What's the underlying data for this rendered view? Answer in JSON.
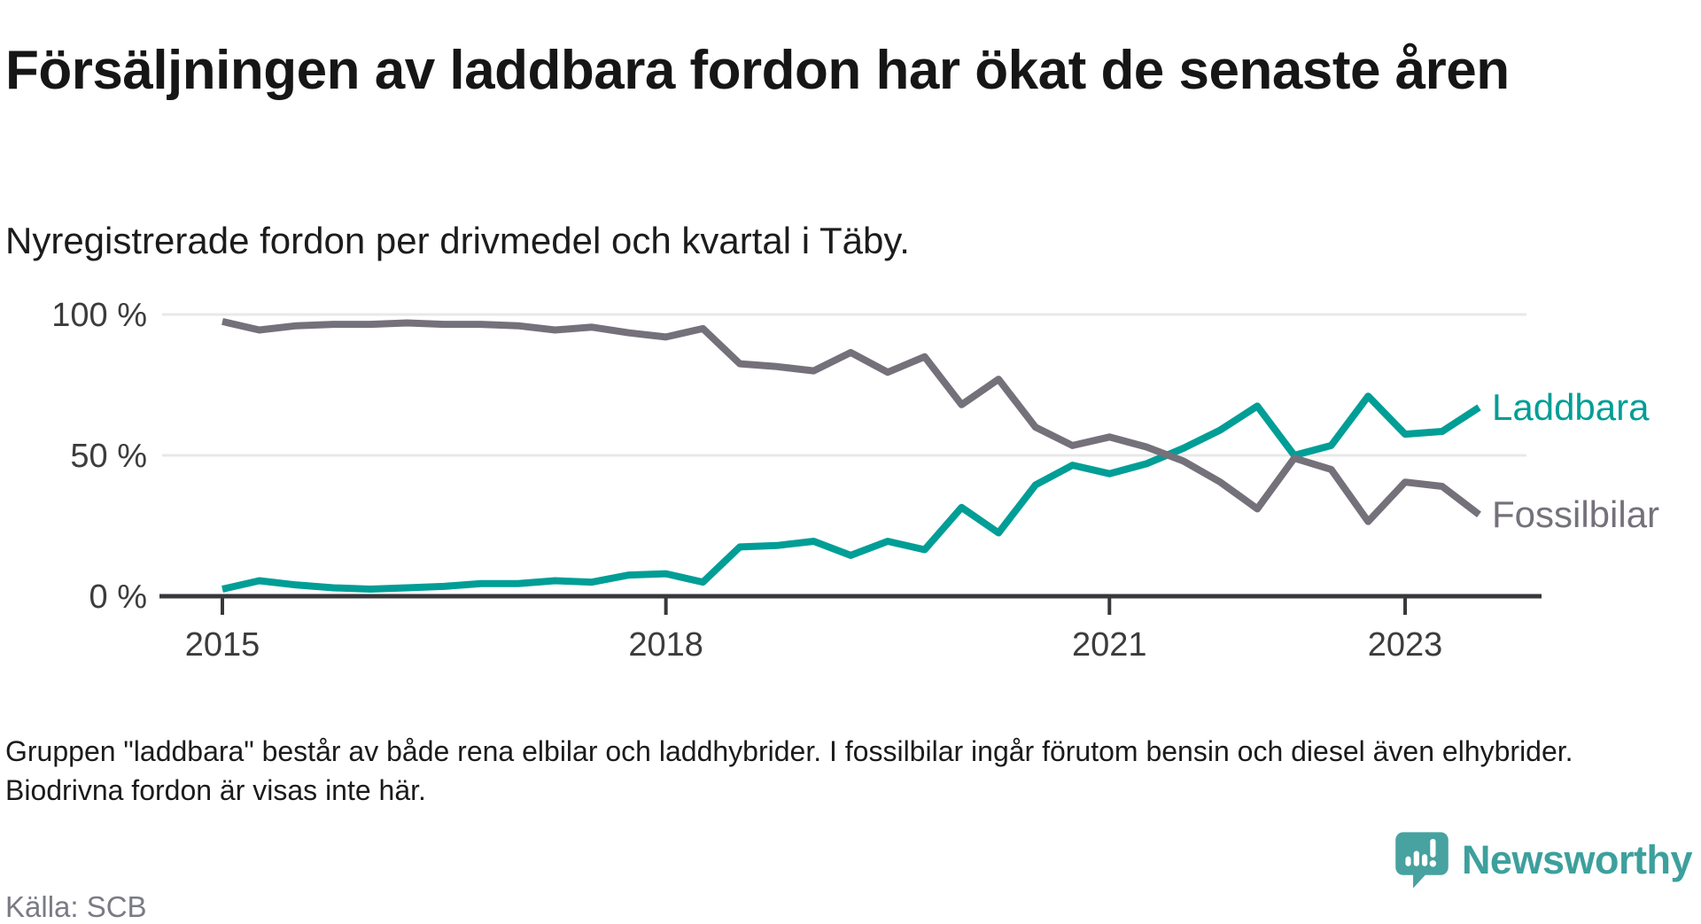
{
  "header": {
    "title": "Försäljningen av laddbara fordon har ökat de senaste åren",
    "subtitle": "Nyregistrerade fordon per drivmedel och kvartal i Täby."
  },
  "footer": {
    "note": "Gruppen \"laddbara\" består av både rena elbilar och laddhybrider. I fossilbilar ingår förutom bensin och diesel även elhybrider. Biodrivna fordon är visas inte här.",
    "source": "Källa: SCB",
    "brand": "Newsworthy"
  },
  "colors": {
    "grid": "#e8e8e8",
    "axis": "#38383c",
    "tick_text": "#3c3c3c",
    "laddbara": "#009e96",
    "fossilbilar": "#74717a",
    "logo_teal": "#47a2a0"
  },
  "chart_data": {
    "type": "line",
    "title": "Försäljningen av laddbara fordon har ökat de senaste åren",
    "subtitle": "Nyregistrerade fordon per drivmedel och kvartal i Täby.",
    "xlabel": "",
    "ylabel": "",
    "x_unit": "quarter",
    "ylim": [
      0,
      100
    ],
    "grid": "horizontal",
    "legend_position": "right-end-labels",
    "y_ticks": [
      100,
      50,
      0
    ],
    "y_tick_labels": [
      "100 %",
      "50 %",
      "0 %"
    ],
    "x_tick_positions": [
      0,
      12,
      24,
      32
    ],
    "x_tick_labels": [
      "2015",
      "2018",
      "2021",
      "2023"
    ],
    "quarters": [
      "2015 Q1",
      "2015 Q2",
      "2015 Q3",
      "2015 Q4",
      "2016 Q1",
      "2016 Q2",
      "2016 Q3",
      "2016 Q4",
      "2017 Q1",
      "2017 Q2",
      "2017 Q3",
      "2017 Q4",
      "2018 Q1",
      "2018 Q2",
      "2018 Q3",
      "2018 Q4",
      "2019 Q1",
      "2019 Q2",
      "2019 Q3",
      "2019 Q4",
      "2020 Q1",
      "2020 Q2",
      "2020 Q3",
      "2020 Q4",
      "2021 Q1",
      "2021 Q2",
      "2021 Q3",
      "2021 Q4",
      "2022 Q1",
      "2022 Q2",
      "2022 Q3",
      "2022 Q4",
      "2023 Q1",
      "2023 Q2",
      "2023 Q3"
    ],
    "series": [
      {
        "name": "Laddbara",
        "color": "#009e96",
        "values": [
          2.5,
          5.5,
          4,
          3,
          2.5,
          3,
          3.5,
          4.5,
          4.5,
          5.5,
          5,
          7.5,
          8,
          5,
          17.5,
          18,
          19.5,
          14.5,
          19.5,
          16.5,
          31.5,
          22.5,
          39.5,
          46.5,
          43.5,
          47,
          52.5,
          59,
          67.5,
          50,
          53.5,
          71,
          57.5,
          58.5,
          67
        ]
      },
      {
        "name": "Fossilbilar",
        "color": "#74717a",
        "values": [
          97.5,
          94.5,
          96,
          96.5,
          96.5,
          97,
          96.5,
          96.5,
          96,
          94.5,
          95.5,
          93.5,
          92,
          95,
          82.5,
          81.5,
          80,
          86.5,
          79.5,
          85,
          68,
          77,
          60,
          53.5,
          56.5,
          53,
          48,
          40.5,
          31,
          49,
          45,
          26.5,
          40.5,
          39,
          29
        ]
      }
    ]
  }
}
